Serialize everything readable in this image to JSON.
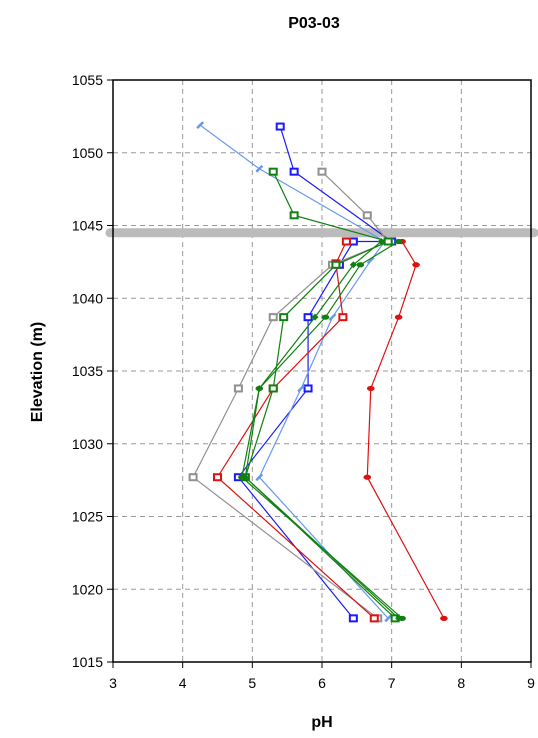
{
  "chart_data": {
    "type": "line",
    "title": "P03-03",
    "xlabel": "pH",
    "ylabel": "Elevation (m)",
    "xlim": [
      3,
      9
    ],
    "ylim": [
      1015,
      1055
    ],
    "xticks": [
      3,
      4,
      5,
      6,
      7,
      8,
      9
    ],
    "yticks": [
      1015,
      1020,
      1025,
      1030,
      1035,
      1040,
      1045,
      1050,
      1055
    ],
    "grid": true,
    "reference_line": {
      "y": 1044.5,
      "color": "#bbbbbb"
    },
    "series": [
      {
        "color": "#1a1aff",
        "marker": "square-outline",
        "points": [
          [
            5.4,
            1051.8
          ],
          [
            5.6,
            1048.7
          ],
          [
            7.0,
            1043.9
          ],
          [
            6.45,
            1043.9
          ],
          [
            6.25,
            1042.3
          ],
          [
            5.8,
            1038.7
          ],
          [
            5.8,
            1033.8
          ],
          [
            4.8,
            1027.7
          ],
          [
            6.45,
            1018.0
          ]
        ]
      },
      {
        "color": "#6699ee",
        "marker": "dash",
        "points": [
          [
            4.25,
            1051.9
          ],
          [
            5.1,
            1048.9
          ],
          [
            6.9,
            1043.9
          ],
          [
            6.7,
            1042.6
          ],
          [
            6.15,
            1038.7
          ],
          [
            5.7,
            1033.8
          ],
          [
            5.1,
            1027.7
          ],
          [
            6.95,
            1018.0
          ]
        ]
      },
      {
        "color": "#909090",
        "marker": "square-outline",
        "points": [
          [
            6.0,
            1048.7
          ],
          [
            6.65,
            1045.7
          ],
          [
            6.95,
            1043.9
          ],
          [
            6.15,
            1042.3
          ],
          [
            5.3,
            1038.7
          ],
          [
            4.8,
            1033.8
          ],
          [
            4.15,
            1027.7
          ],
          [
            6.8,
            1018.0
          ]
        ]
      },
      {
        "color": "#e01010",
        "marker": "square-outline",
        "points": [
          [
            6.35,
            1043.9
          ],
          [
            6.2,
            1042.4
          ],
          [
            6.3,
            1038.7
          ],
          [
            5.3,
            1033.8
          ],
          [
            4.5,
            1027.7
          ],
          [
            6.75,
            1018.0
          ]
        ]
      },
      {
        "color": "#e01010",
        "marker": "dot",
        "points": [
          [
            7.15,
            1043.9
          ],
          [
            7.35,
            1042.3
          ],
          [
            7.1,
            1038.7
          ],
          [
            6.7,
            1033.8
          ],
          [
            6.65,
            1027.7
          ],
          [
            7.75,
            1018.0
          ]
        ]
      },
      {
        "color": "#108010",
        "marker": "square-outline",
        "points": [
          [
            5.3,
            1048.7
          ],
          [
            5.6,
            1045.7
          ],
          [
            6.95,
            1043.9
          ],
          [
            6.2,
            1042.3
          ],
          [
            5.45,
            1038.7
          ],
          [
            5.3,
            1033.8
          ],
          [
            4.9,
            1027.7
          ],
          [
            7.05,
            1018.0
          ]
        ]
      },
      {
        "color": "#108010",
        "marker": "dot",
        "points": [
          [
            7.1,
            1043.9
          ],
          [
            6.55,
            1042.3
          ],
          [
            6.05,
            1038.7
          ],
          [
            5.1,
            1033.8
          ],
          [
            4.85,
            1027.7
          ],
          [
            7.15,
            1018.0
          ]
        ]
      },
      {
        "color": "#108010",
        "marker": "diamond",
        "points": [
          [
            6.85,
            1043.9
          ],
          [
            6.45,
            1042.3
          ],
          [
            5.9,
            1038.7
          ],
          [
            5.1,
            1033.8
          ],
          [
            4.9,
            1027.7
          ],
          [
            7.1,
            1018.0
          ]
        ]
      }
    ]
  }
}
